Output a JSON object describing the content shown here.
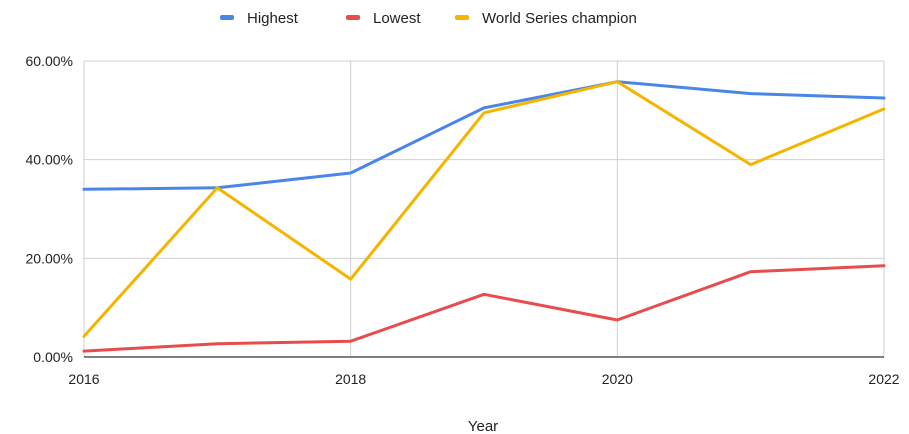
{
  "chart_data": {
    "type": "line",
    "title": "",
    "xlabel": "Year",
    "ylabel": "",
    "x": [
      2016,
      2017,
      2018,
      2019,
      2020,
      2021,
      2022
    ],
    "x_tick_labels": [
      "2016",
      "2018",
      "2020",
      "2022"
    ],
    "x_tick_values": [
      2016,
      2018,
      2020,
      2022
    ],
    "xlim": [
      2016,
      2022
    ],
    "ylim": [
      0,
      0.6
    ],
    "y_tick_values": [
      0,
      0.2,
      0.4,
      0.6
    ],
    "y_tick_labels": [
      "0.00%",
      "20.00%",
      "40.00%",
      "60.00%"
    ],
    "grid": true,
    "legend_position": "top-center",
    "series": [
      {
        "name": "Highest",
        "color": "#4a86e8",
        "values": [
          0.34,
          0.343,
          0.373,
          0.505,
          0.558,
          0.534,
          0.525
        ]
      },
      {
        "name": "Lowest",
        "color": "#e84c4c",
        "values": [
          0.012,
          0.027,
          0.032,
          0.127,
          0.075,
          0.173,
          0.185
        ]
      },
      {
        "name": "World Series champion",
        "color": "#f4b400",
        "values": [
          0.042,
          0.343,
          0.158,
          0.495,
          0.558,
          0.39,
          0.503
        ]
      }
    ]
  }
}
